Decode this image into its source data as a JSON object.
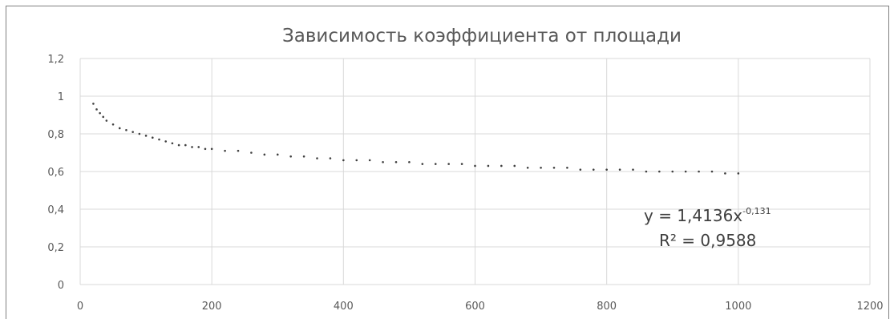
{
  "chart_data": {
    "type": "scatter",
    "title": "Зависимость  коэффициента от площади",
    "xlabel": "",
    "ylabel": "",
    "xlim": [
      0,
      1200
    ],
    "ylim": [
      0,
      1.2
    ],
    "x_ticks": [
      "0",
      "200",
      "400",
      "600",
      "800",
      "1000",
      "1200"
    ],
    "y_ticks": [
      "0",
      "0,2",
      "0,4",
      "0,6",
      "0,8",
      "1",
      "1,2"
    ],
    "grid": true,
    "legend": "none",
    "marker_color": "#404040",
    "trendline": {
      "equation_base": "y = 1,4136x",
      "equation_exponent": "-0,131",
      "r2_label": "R² = 0,9588",
      "coef": 1.4136,
      "power": -0.131
    },
    "series": [
      {
        "x": [
          20,
          25,
          30,
          35,
          40,
          50,
          60,
          70,
          80,
          90,
          100,
          110,
          120,
          130,
          140,
          150,
          160,
          170,
          180,
          190,
          200,
          220,
          240,
          260,
          280,
          300,
          320,
          340,
          360,
          380,
          400,
          420,
          440,
          460,
          480,
          500,
          520,
          540,
          560,
          580,
          600,
          620,
          640,
          660,
          680,
          700,
          720,
          740,
          760,
          780,
          800,
          820,
          840,
          860,
          880,
          900,
          920,
          940,
          960,
          980,
          1000
        ],
        "y": [
          0.96,
          0.93,
          0.91,
          0.89,
          0.87,
          0.85,
          0.83,
          0.82,
          0.81,
          0.8,
          0.79,
          0.78,
          0.77,
          0.76,
          0.75,
          0.74,
          0.74,
          0.73,
          0.73,
          0.72,
          0.72,
          0.71,
          0.71,
          0.7,
          0.69,
          0.69,
          0.68,
          0.68,
          0.67,
          0.67,
          0.66,
          0.66,
          0.66,
          0.65,
          0.65,
          0.65,
          0.64,
          0.64,
          0.64,
          0.64,
          0.63,
          0.63,
          0.63,
          0.63,
          0.62,
          0.62,
          0.62,
          0.62,
          0.61,
          0.61,
          0.61,
          0.61,
          0.61,
          0.6,
          0.6,
          0.6,
          0.6,
          0.6,
          0.6,
          0.59,
          0.59
        ]
      }
    ]
  }
}
